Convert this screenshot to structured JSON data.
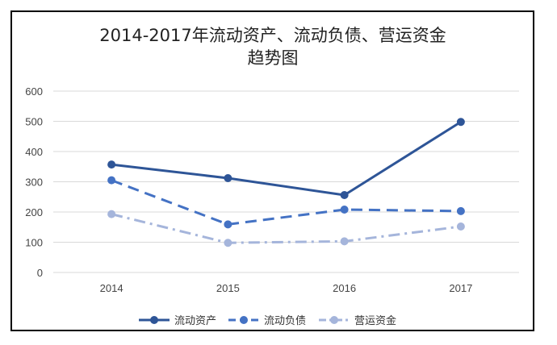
{
  "chart_data": {
    "type": "line",
    "title_line1": "2014-2017年流动资产、流动负债、营运资金",
    "title_line2": "趋势图",
    "xlabel": "",
    "ylabel": "",
    "categories": [
      "2014",
      "2015",
      "2016",
      "2017"
    ],
    "ylim": [
      0,
      600
    ],
    "yticks": [
      "0",
      "100",
      "200",
      "300",
      "400",
      "500",
      "600"
    ],
    "grid": true,
    "legend_position": "bottom",
    "series": [
      {
        "name": "流动资产",
        "values": [
          357,
          312,
          256,
          498
        ],
        "color": "#2E5597",
        "dash": "solid"
      },
      {
        "name": "流动负债",
        "values": [
          305,
          159,
          208,
          203
        ],
        "color": "#4472C4",
        "dash": "dash"
      },
      {
        "name": "营运资金",
        "values": [
          193,
          98,
          103,
          152
        ],
        "color": "#A5B5DB",
        "dash": "dashdot"
      }
    ]
  }
}
